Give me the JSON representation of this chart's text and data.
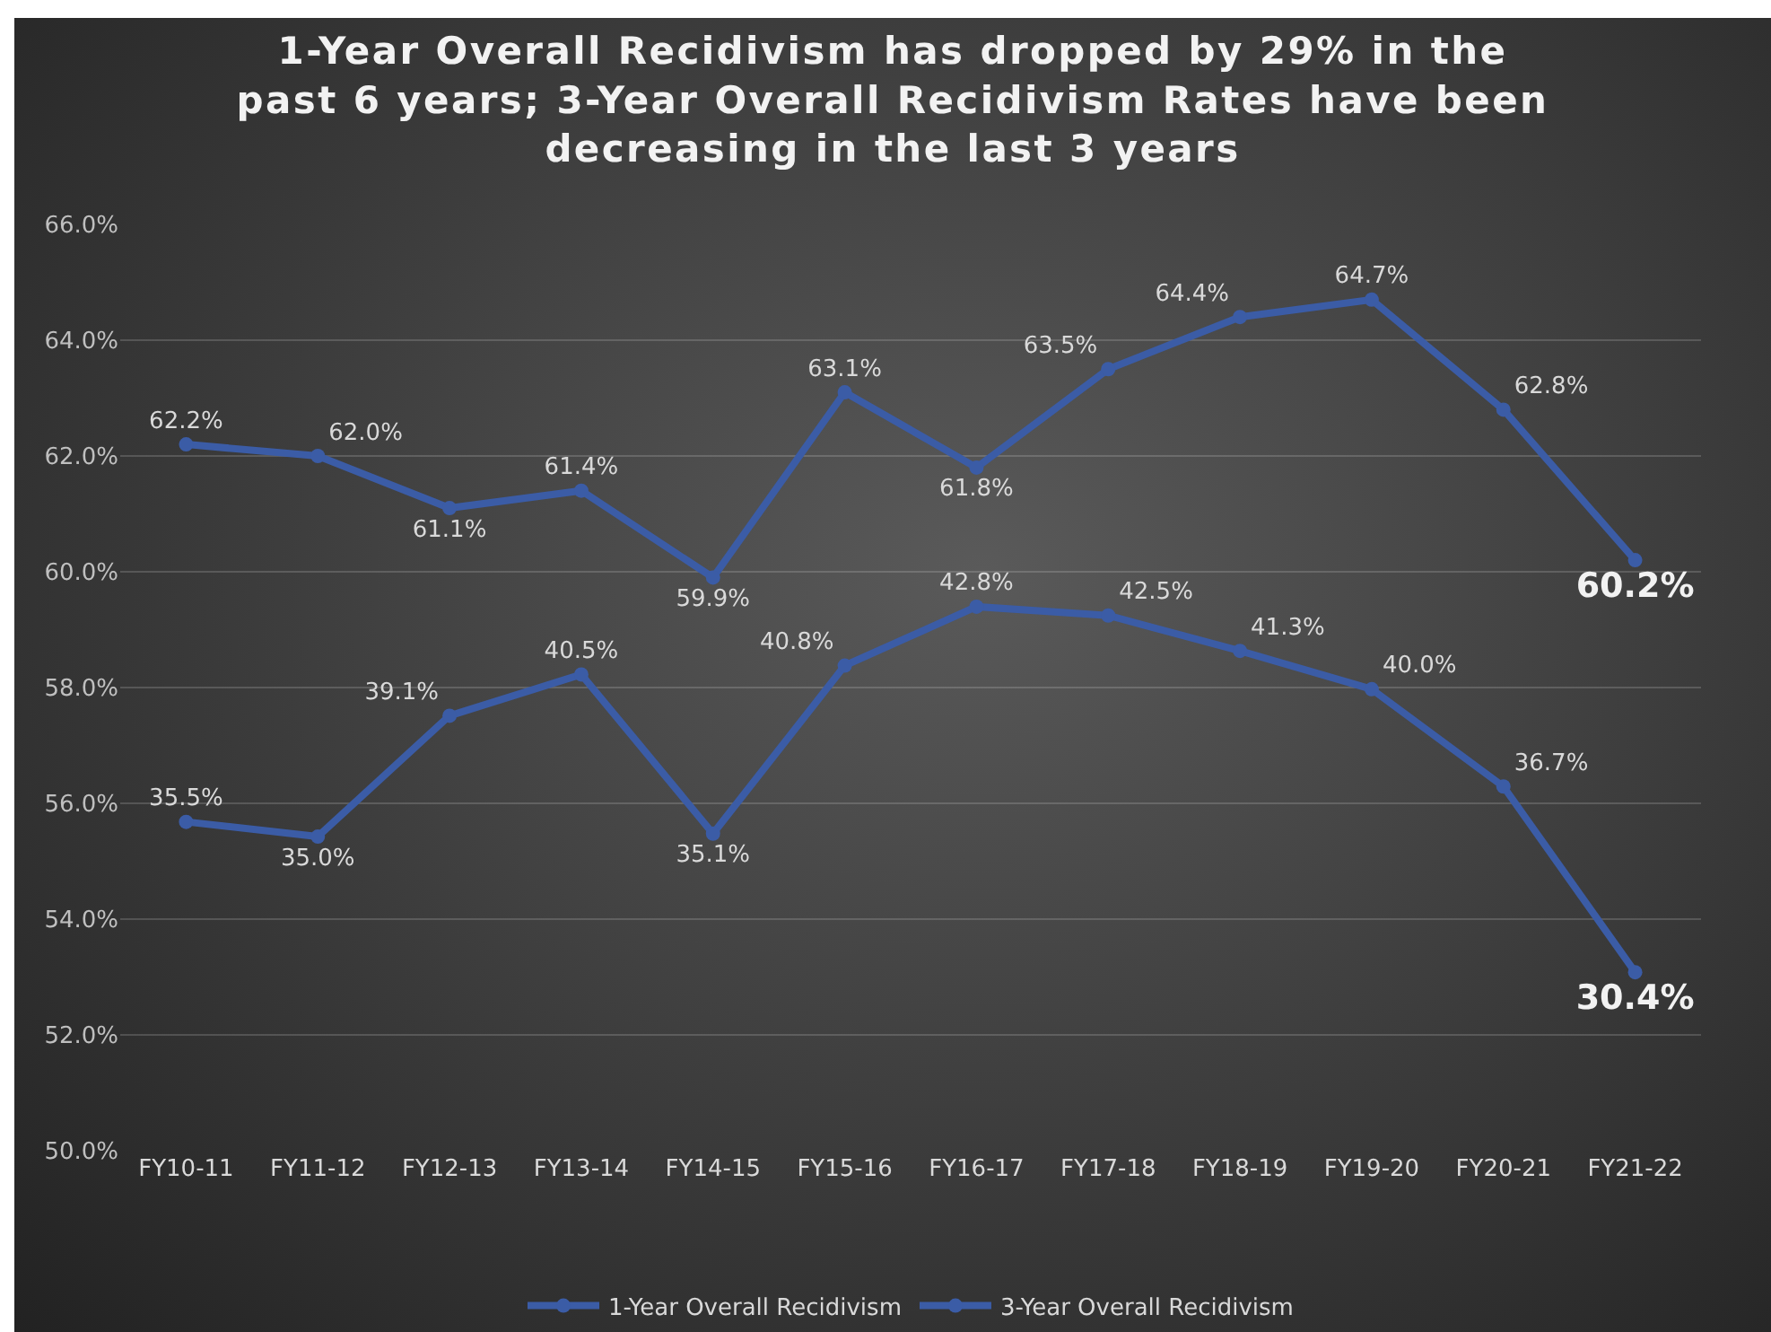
{
  "chart_data": {
    "type": "line",
    "title": "1-Year Overall Recidivism has dropped by 29% in the past 6 years; 3-Year Overall Recidivism Rates have been decreasing in the last 3 years",
    "categories": [
      "FY10-11",
      "FY11-12",
      "FY12-13",
      "FY13-14",
      "FY14-15",
      "FY15-16",
      "FY16-17",
      "FY17-18",
      "FY18-19",
      "FY19-20",
      "FY20-21",
      "FY21-22"
    ],
    "series": [
      {
        "name": "1-Year Overall Recidivism",
        "color": "#3b5ca6",
        "axis": "y2",
        "values": [
          35.5,
          35.0,
          39.1,
          40.5,
          35.1,
          40.8,
          42.8,
          42.5,
          41.3,
          40.0,
          36.7,
          30.4
        ],
        "value_labels": [
          "35.5%",
          "35.0%",
          "39.1%",
          "40.5%",
          "35.1%",
          "40.8%",
          "42.8%",
          "42.5%",
          "41.3%",
          "40.0%",
          "36.7%",
          "30.4%"
        ]
      },
      {
        "name": "3-Year Overall Recidivism",
        "color": "#3b5ca6",
        "values": [
          62.2,
          62.0,
          61.1,
          61.4,
          59.9,
          63.1,
          61.8,
          63.5,
          64.4,
          64.7,
          62.8,
          60.2
        ],
        "value_labels": [
          "62.2%",
          "62.0%",
          "61.1%",
          "61.4%",
          "59.9%",
          "63.1%",
          "61.8%",
          "63.5%",
          "64.4%",
          "64.7%",
          "62.8%",
          "60.2%"
        ]
      }
    ],
    "ylim": [
      50,
      66
    ],
    "yticks": [
      {
        "value": 50,
        "label": "50.0%"
      },
      {
        "value": 52,
        "label": "52.0%"
      },
      {
        "value": 54,
        "label": "54.0%"
      },
      {
        "value": 56,
        "label": "56.0%"
      },
      {
        "value": 58,
        "label": "58.0%"
      },
      {
        "value": 60,
        "label": "60.0%"
      },
      {
        "value": 62,
        "label": "62.0%"
      },
      {
        "value": 64,
        "label": "64.0%"
      },
      {
        "value": 66,
        "label": "66.0%"
      }
    ],
    "grid": "y",
    "legend": "bottom",
    "marker": "circle",
    "line_style": "solid"
  }
}
